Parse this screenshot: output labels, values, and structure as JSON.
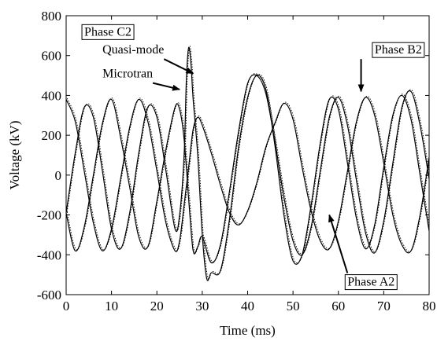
{
  "chart_data": {
    "type": "line",
    "xlabel": "Time (ms)",
    "ylabel": "Voltage (kV)",
    "xlim": [
      0,
      80
    ],
    "ylim": [
      -600,
      800
    ],
    "xticks": [
      0,
      10,
      20,
      30,
      40,
      50,
      60,
      70,
      80
    ],
    "yticks": [
      -600,
      -400,
      -200,
      0,
      200,
      400,
      600,
      800
    ],
    "grid": false,
    "curve_style": "Microtran solid, Quasi-mode dotted (overlaid)",
    "series": [
      {
        "name": "Phase A2",
        "color": "#000000",
        "x": [
          0,
          2,
          4,
          6,
          8,
          10,
          12,
          14,
          16,
          18,
          20,
          22,
          24,
          25,
          26,
          27,
          28,
          29,
          30,
          32,
          34,
          36,
          38,
          40,
          42,
          44,
          46,
          48,
          50,
          52,
          54,
          56,
          58,
          60,
          62,
          64,
          66,
          68,
          70,
          72,
          74,
          76,
          78,
          80
        ],
        "y": [
          380,
          270,
          20,
          -240,
          -380,
          -270,
          -20,
          240,
          380,
          270,
          20,
          -240,
          -380,
          -330,
          -150,
          40,
          230,
          290,
          250,
          110,
          -50,
          -190,
          -250,
          -180,
          -40,
          140,
          260,
          360,
          280,
          40,
          -180,
          -330,
          -370,
          -230,
          20,
          270,
          390,
          300,
          60,
          -200,
          -350,
          -380,
          -200,
          90
        ]
      },
      {
        "name": "Phase B2",
        "color": "#000000",
        "x": [
          0,
          2,
          4,
          6,
          8,
          10,
          12,
          14,
          16,
          18,
          20,
          22,
          24,
          25,
          26,
          27,
          28,
          29,
          30,
          32,
          34,
          36,
          38,
          40,
          42,
          44,
          46,
          48,
          50,
          52,
          54,
          56,
          58,
          60,
          62,
          64,
          66,
          68,
          70,
          72,
          74,
          76,
          78,
          80
        ],
        "y": [
          -190,
          -380,
          -260,
          0,
          260,
          380,
          190,
          -60,
          -310,
          -360,
          -130,
          130,
          340,
          330,
          180,
          -120,
          -380,
          -360,
          -310,
          -440,
          -350,
          -80,
          220,
          460,
          500,
          410,
          170,
          -110,
          -330,
          -400,
          -260,
          20,
          290,
          390,
          250,
          -30,
          -290,
          -390,
          -230,
          60,
          340,
          420,
          250,
          -20
        ]
      },
      {
        "name": "Phase C2",
        "color": "#000000",
        "x": [
          0,
          2,
          4,
          6,
          8,
          10,
          12,
          14,
          16,
          18,
          20,
          22,
          24,
          25,
          26,
          26.5,
          27,
          27.5,
          28,
          29,
          30,
          31,
          32,
          34,
          36,
          38,
          40,
          42,
          44,
          46,
          48,
          50,
          52,
          54,
          56,
          58,
          60,
          62,
          64,
          66,
          68,
          70,
          72,
          74,
          76,
          78,
          80
        ],
        "y": [
          -190,
          110,
          340,
          290,
          20,
          -270,
          -370,
          -190,
          110,
          340,
          290,
          20,
          -270,
          -200,
          100,
          480,
          640,
          560,
          380,
          100,
          -300,
          -520,
          -490,
          -480,
          -220,
          140,
          390,
          500,
          430,
          150,
          -200,
          -430,
          -400,
          -150,
          160,
          380,
          330,
          60,
          -220,
          -370,
          -250,
          40,
          300,
          400,
          280,
          0,
          -280
        ]
      }
    ],
    "annotations": [
      {
        "text": "Phase C2",
        "boxed": true,
        "x": 4,
        "y": 700
      },
      {
        "text": "Quasi-mode",
        "x": 8,
        "y": 610,
        "arrow_to": [
          28,
          510
        ]
      },
      {
        "text": "Microtran",
        "x": 8,
        "y": 490,
        "arrow_to": [
          25,
          430
        ]
      },
      {
        "text": "Phase B2",
        "boxed": true,
        "x": 68,
        "y": 610,
        "arrow_to": [
          65,
          420
        ]
      },
      {
        "text": "Phase A2",
        "boxed": true,
        "x": 62,
        "y": -555,
        "arrow_to": [
          58,
          -200
        ]
      }
    ]
  }
}
